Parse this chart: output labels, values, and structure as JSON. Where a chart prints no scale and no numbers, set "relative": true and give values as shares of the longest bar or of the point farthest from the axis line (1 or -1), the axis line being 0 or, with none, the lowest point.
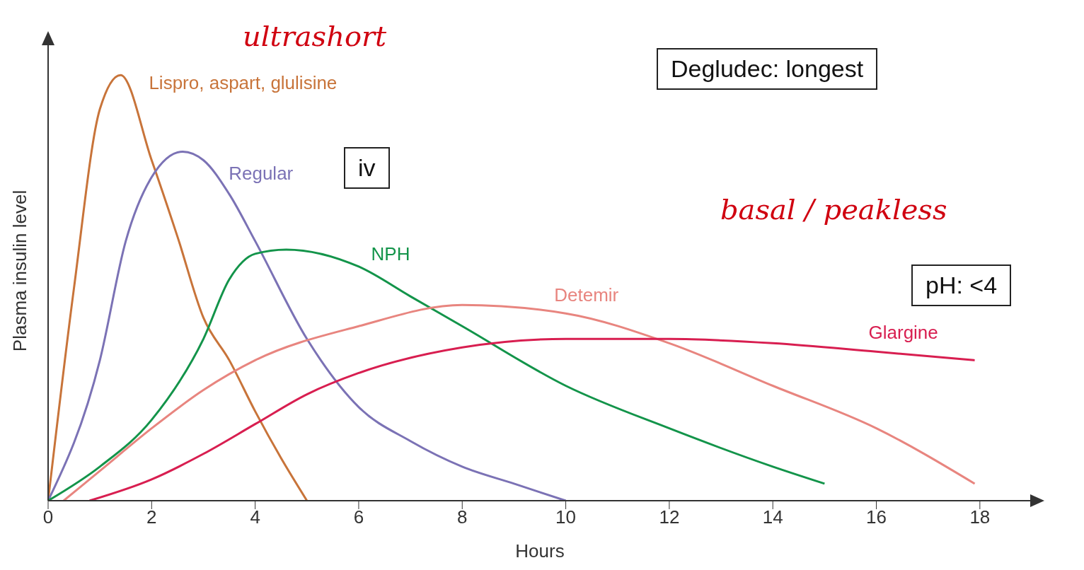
{
  "chart_data": {
    "type": "line",
    "relative": true,
    "xlabel": "Hours",
    "ylabel": "Plasma insulin level",
    "xlim": [
      0,
      19
    ],
    "xticks": [
      0,
      2,
      4,
      6,
      8,
      10,
      12,
      14,
      16,
      18
    ],
    "marker": "none",
    "line_style": "solid",
    "series": [
      {
        "name": "Lispro, aspart, glulisine",
        "color": "#c8743a",
        "x": [
          0,
          0.5,
          1,
          1.4,
          2,
          2.5,
          3,
          3.5,
          4,
          4.5,
          5
        ],
        "values": [
          0,
          0.5,
          0.92,
          1,
          0.8,
          0.62,
          0.43,
          0.33,
          0.21,
          0.1,
          0
        ]
      },
      {
        "name": "Regular",
        "color": "#7b72b5",
        "x": [
          0,
          1,
          1.5,
          2,
          2.6,
          3,
          3.5,
          4,
          5,
          6,
          7,
          8,
          9,
          10
        ],
        "values": [
          0,
          0.33,
          0.61,
          0.76,
          0.82,
          0.8,
          0.72,
          0.61,
          0.38,
          0.22,
          0.14,
          0.08,
          0.04,
          0
        ]
      },
      {
        "name": "NPH",
        "color": "#13944a",
        "x": [
          0,
          1,
          2,
          3,
          3.5,
          4,
          4.6,
          6,
          7,
          8,
          10,
          12,
          14,
          15
        ],
        "values": [
          0,
          0.08,
          0.19,
          0.38,
          0.52,
          0.58,
          0.59,
          0.55,
          0.48,
          0.41,
          0.27,
          0.17,
          0.08,
          0.04
        ]
      },
      {
        "name": "Detemir",
        "color": "#e8857f",
        "x": [
          0.3,
          1,
          2,
          3,
          4,
          6,
          8,
          10,
          12,
          14,
          16,
          17.9
        ],
        "values": [
          0,
          0.07,
          0.17,
          0.26,
          0.33,
          0.41,
          0.46,
          0.44,
          0.37,
          0.27,
          0.17,
          0.04
        ]
      },
      {
        "name": "Glargine",
        "color": "#d81e50",
        "x": [
          0.8,
          2,
          3,
          4,
          5,
          6,
          8,
          10,
          12,
          14,
          16,
          17.9
        ],
        "values": [
          0,
          0.05,
          0.11,
          0.18,
          0.25,
          0.3,
          0.36,
          0.38,
          0.38,
          0.37,
          0.35,
          0.33
        ]
      }
    ],
    "annotations": [
      "ultrashort",
      "Degludec: longest",
      "iv",
      "basal / peakless",
      "pH: <4"
    ]
  }
}
